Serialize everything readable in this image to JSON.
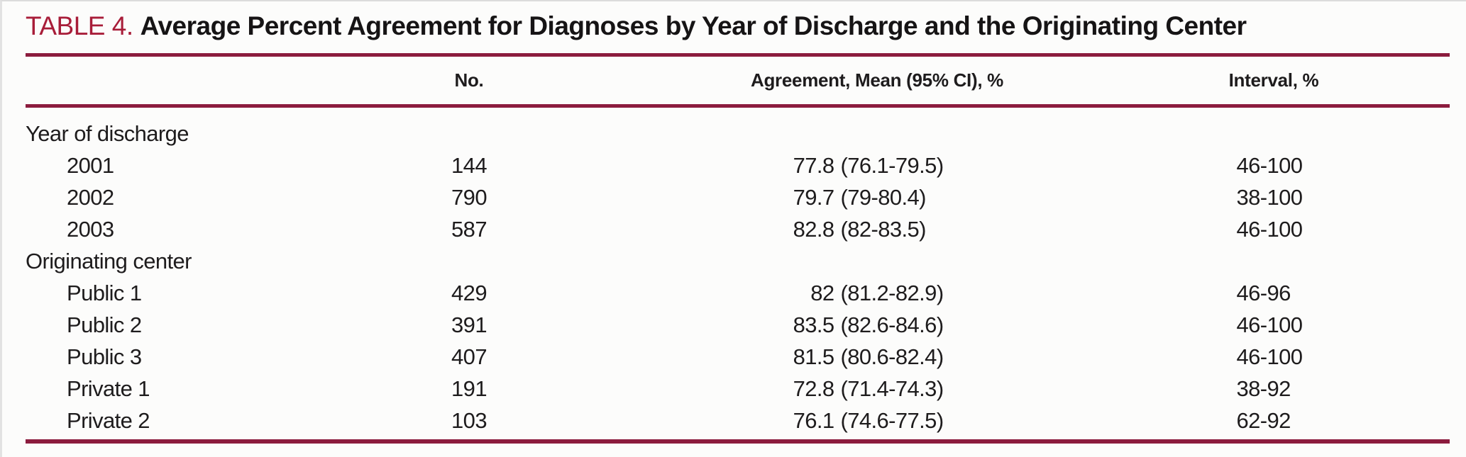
{
  "title": {
    "label": "TABLE 4.",
    "text": "Average Percent Agreement for Diagnoses by Year of Discharge and the Originating Center"
  },
  "colors": {
    "title_accent": "#A81D39",
    "rule_maroon": "#8C1C3E",
    "text": "#1E1C1D",
    "background": "#FCFCFB"
  },
  "table": {
    "columns": {
      "label": "",
      "no": "No.",
      "agreement": "Agreement, Mean (95% CI), %",
      "interval": "Interval, %"
    },
    "rows": [
      {
        "type": "group",
        "label": "Year of discharge",
        "no": "",
        "mean": "",
        "ci": "",
        "interval": ""
      },
      {
        "type": "item",
        "label": "2001",
        "no": "144",
        "mean": "77.8",
        "ci": "(76.1-79.5)",
        "interval": "46-100"
      },
      {
        "type": "item",
        "label": "2002",
        "no": "790",
        "mean": "79.7",
        "ci": "(79-80.4)",
        "interval": "38-100"
      },
      {
        "type": "item",
        "label": "2003",
        "no": "587",
        "mean": "82.8",
        "ci": "(82-83.5)",
        "interval": "46-100"
      },
      {
        "type": "group",
        "label": "Originating center",
        "no": "",
        "mean": "",
        "ci": "",
        "interval": ""
      },
      {
        "type": "item",
        "label": "Public 1",
        "no": "429",
        "mean": "82",
        "ci": "(81.2-82.9)",
        "interval": "46-96"
      },
      {
        "type": "item",
        "label": "Public 2",
        "no": "391",
        "mean": "83.5",
        "ci": "(82.6-84.6)",
        "interval": "46-100"
      },
      {
        "type": "item",
        "label": "Public 3",
        "no": "407",
        "mean": "81.5",
        "ci": "(80.6-82.4)",
        "interval": "46-100"
      },
      {
        "type": "item",
        "label": "Private 1",
        "no": "191",
        "mean": "72.8",
        "ci": "(71.4-74.3)",
        "interval": "38-92"
      },
      {
        "type": "item",
        "label": "Private 2",
        "no": "103",
        "mean": "76.1",
        "ci": "(74.6-77.5)",
        "interval": "62-92"
      }
    ]
  }
}
